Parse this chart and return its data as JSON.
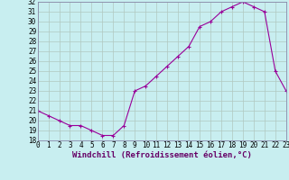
{
  "x": [
    0,
    1,
    2,
    3,
    4,
    5,
    6,
    7,
    8,
    9,
    10,
    11,
    12,
    13,
    14,
    15,
    16,
    17,
    18,
    19,
    20,
    21,
    22,
    23
  ],
  "y": [
    21.0,
    20.5,
    20.0,
    19.5,
    19.5,
    19.0,
    18.5,
    18.5,
    19.5,
    23.0,
    23.5,
    24.5,
    25.5,
    26.5,
    27.5,
    29.5,
    30.0,
    31.0,
    31.5,
    32.0,
    31.5,
    31.0,
    25.0,
    23.0
  ],
  "xlim": [
    0,
    23
  ],
  "ylim": [
    18,
    32
  ],
  "yticks": [
    18,
    19,
    20,
    21,
    22,
    23,
    24,
    25,
    26,
    27,
    28,
    29,
    30,
    31,
    32
  ],
  "xticks": [
    0,
    1,
    2,
    3,
    4,
    5,
    6,
    7,
    8,
    9,
    10,
    11,
    12,
    13,
    14,
    15,
    16,
    17,
    18,
    19,
    20,
    21,
    22,
    23
  ],
  "xlabel": "Windchill (Refroidissement éolien,°C)",
  "line_color": "#990099",
  "marker": "+",
  "bg_color": "#c8eef0",
  "grid_color": "#b0c8c0",
  "tick_fontsize": 5.5,
  "label_fontsize": 6.5
}
